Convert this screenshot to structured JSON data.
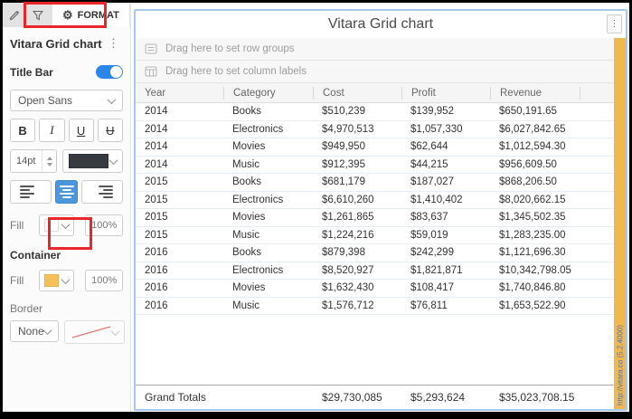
{
  "colors": {
    "annotation_red": "#e8262a",
    "toggle_blue": "#2a86e8",
    "active_align_blue": "#4a97dd",
    "panel_border_blue": "#a6c8ea",
    "strip_orange": "#f1b84e",
    "container_fill_swatch": "#f5c05a",
    "title_font_swatch": "#363b40"
  },
  "sidebar": {
    "tabs": {
      "format_label": "FORMAT"
    },
    "panel_title": "Vitara Grid chart",
    "title_bar_label": "Title Bar",
    "font_family": "Open Sans",
    "font_size": "14pt",
    "style_buttons": {
      "bold": "B",
      "italic": "I",
      "underline": "U",
      "strikethrough": "U"
    },
    "title_fill": {
      "label": "Fill",
      "opacity": "100%"
    },
    "container": {
      "heading": "Container",
      "fill_label": "Fill",
      "fill_opacity": "100%",
      "border_label": "Border",
      "border_style": "None"
    }
  },
  "main": {
    "title": "Vitara Grid chart",
    "drop_zones": {
      "row_groups": "Drag here to set row groups",
      "column_labels": "Drag here to set column labels"
    },
    "watermark": "http://vitara.co (5.2.4000)",
    "table": {
      "columns": [
        "Year",
        "Category",
        "Cost",
        "Profit",
        "Revenue"
      ],
      "rows": [
        [
          "2014",
          "Books",
          "$510,239",
          "$139,952",
          "$650,191.65"
        ],
        [
          "2014",
          "Electronics",
          "$4,970,513",
          "$1,057,330",
          "$6,027,842.65"
        ],
        [
          "2014",
          "Movies",
          "$949,950",
          "$62,644",
          "$1,012,594.30"
        ],
        [
          "2014",
          "Music",
          "$912,395",
          "$44,215",
          "$956,609.50"
        ],
        [
          "2015",
          "Books",
          "$681,179",
          "$187,027",
          "$868,206.50"
        ],
        [
          "2015",
          "Electronics",
          "$6,610,260",
          "$1,410,402",
          "$8,020,662.15"
        ],
        [
          "2015",
          "Movies",
          "$1,261,865",
          "$83,637",
          "$1,345,502.35"
        ],
        [
          "2015",
          "Music",
          "$1,224,216",
          "$59,019",
          "$1,283,235.00"
        ],
        [
          "2016",
          "Books",
          "$879,398",
          "$242,299",
          "$1,121,696.30"
        ],
        [
          "2016",
          "Electronics",
          "$8,520,927",
          "$1,821,871",
          "$10,342,798.05"
        ],
        [
          "2016",
          "Movies",
          "$1,632,430",
          "$108,417",
          "$1,740,846.80"
        ],
        [
          "2016",
          "Music",
          "$1,576,712",
          "$76,811",
          "$1,653,522.90"
        ]
      ],
      "grand_totals": {
        "label": "Grand Totals",
        "cost": "$29,730,085",
        "profit": "$5,293,624",
        "revenue": "$35,023,708.15"
      }
    }
  }
}
